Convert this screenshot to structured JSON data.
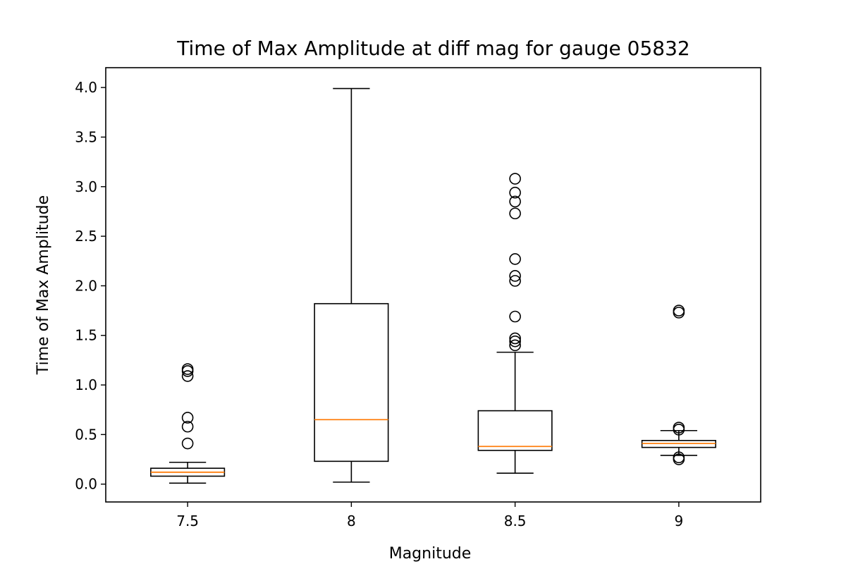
{
  "chart_data": {
    "type": "boxplot",
    "title": "Time of Max Amplitude at diff mag for gauge 05832",
    "xlabel": "Magnitude",
    "ylabel": "Time of Max Amplitude",
    "ylim": [
      -0.18,
      4.2
    ],
    "yticks": [
      "0.0",
      "0.5",
      "1.0",
      "1.5",
      "2.0",
      "2.5",
      "3.0",
      "3.5",
      "4.0"
    ],
    "categories": [
      "7.5",
      "8",
      "8.5",
      "9"
    ],
    "grid": false,
    "colors": {
      "box": "#000000",
      "median": "#ff7f0e",
      "outlier": "#000000"
    },
    "boxes": [
      {
        "category": "7.5",
        "whisker_low": 0.01,
        "q1": 0.08,
        "median": 0.12,
        "q3": 0.16,
        "whisker_high": 0.22,
        "outliers": [
          0.41,
          0.58,
          0.67,
          1.09,
          1.14,
          1.16
        ]
      },
      {
        "category": "8",
        "whisker_low": 0.02,
        "q1": 0.23,
        "median": 0.65,
        "q3": 1.82,
        "whisker_high": 3.99,
        "outliers": []
      },
      {
        "category": "8.5",
        "whisker_low": 0.11,
        "q1": 0.34,
        "median": 0.38,
        "q3": 0.74,
        "whisker_high": 1.33,
        "outliers": [
          1.4,
          1.44,
          1.47,
          1.69,
          2.05,
          2.1,
          2.27,
          2.73,
          2.85,
          2.94,
          3.08
        ]
      },
      {
        "category": "9",
        "whisker_low": 0.29,
        "q1": 0.37,
        "median": 0.41,
        "q3": 0.44,
        "whisker_high": 0.54,
        "outliers": [
          0.25,
          0.27,
          0.55,
          0.57,
          1.73,
          1.75
        ]
      }
    ]
  }
}
